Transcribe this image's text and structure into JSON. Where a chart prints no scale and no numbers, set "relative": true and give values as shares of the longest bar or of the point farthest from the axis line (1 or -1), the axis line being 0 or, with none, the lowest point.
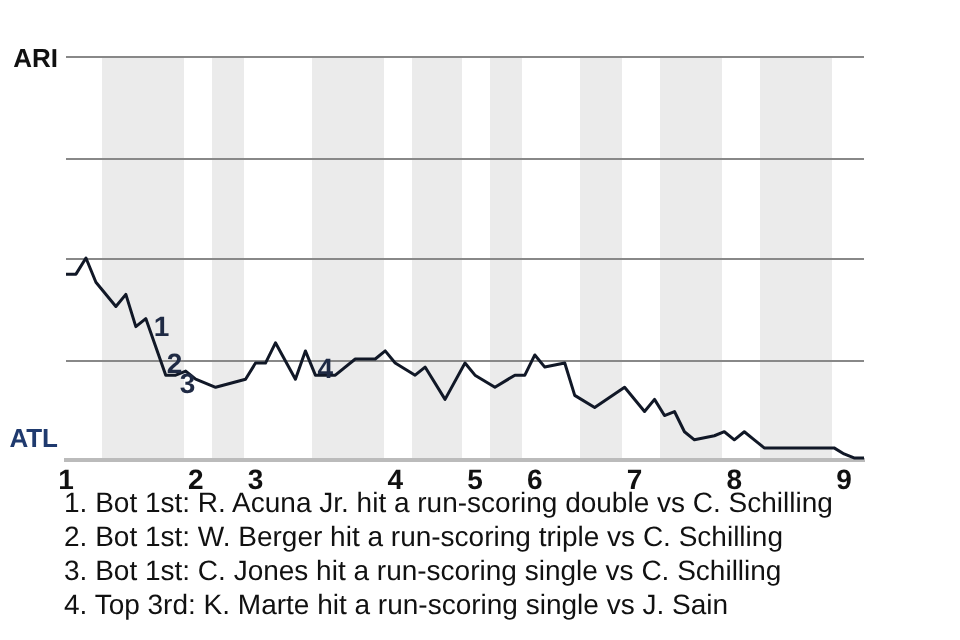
{
  "chart_data": {
    "type": "line",
    "relative": true,
    "categories": [
      "1",
      null,
      null,
      null,
      null,
      null,
      null,
      null,
      null,
      null,
      null,
      null,
      null,
      "2",
      null,
      null,
      null,
      null,
      null,
      "3",
      null,
      null,
      null,
      null,
      null,
      null,
      null,
      null,
      null,
      null,
      null,
      null,
      null,
      "4",
      null,
      null,
      null,
      null,
      null,
      null,
      null,
      "5",
      null,
      null,
      null,
      null,
      null,
      "6",
      null,
      null,
      null,
      null,
      null,
      null,
      null,
      null,
      null,
      "7",
      null,
      null,
      null,
      null,
      null,
      null,
      null,
      null,
      null,
      "8",
      null,
      null,
      null,
      null,
      null,
      null,
      null,
      null,
      null,
      null,
      "9",
      null,
      null
    ],
    "legend": false,
    "marker": "none",
    "line_style": "solid",
    "series": [
      {
        "color": "#111827",
        "values": [
          0.92,
          0.92,
          1,
          0.88,
          null,
          0.76,
          0.82,
          0.66,
          0.7,
          null,
          0.42,
          0.42,
          0.44,
          0.4,
          null,
          0.36,
          null,
          null,
          0.4,
          0.48,
          0.48,
          0.58,
          null,
          0.4,
          0.54,
          0.42,
          null,
          0.42,
          null,
          0.5,
          null,
          0.5,
          0.54,
          0.48,
          null,
          0.42,
          0.46,
          null,
          0.3,
          null,
          0.48,
          0.42,
          null,
          0.36,
          null,
          0.42,
          0.42,
          0.52,
          0.46,
          null,
          0.48,
          0.32,
          null,
          0.26,
          null,
          null,
          0.36,
          null,
          0.24,
          0.3,
          0.22,
          0.24,
          0.14,
          0.1,
          null,
          0.12,
          0.14,
          0.1,
          0.14,
          0.1,
          0.06,
          null,
          null,
          null,
          null,
          null,
          null,
          0.06,
          0.03,
          0.01,
          0.01
        ]
      }
    ],
    "ref_lines": [
      {
        "axis": "y",
        "value": 0.5,
        "color": "#888888"
      },
      {
        "axis": "y",
        "value": 1,
        "color": "#888888"
      },
      {
        "axis": "y",
        "value": 1.5,
        "color": "#888888"
      },
      {
        "axis": "y",
        "value": 2,
        "color": "#888888"
      }
    ],
    "annotations": [
      "ARI",
      "ATL",
      "1",
      "2",
      "3",
      "4",
      "1. Bot 1st: R. Acuna Jr. hit a run-scoring double vs C. Schilling",
      "2. Bot 1st: W. Berger hit a run-scoring triple vs C. Schilling",
      "3. Bot 1st: C. Jones hit a run-scoring single vs C. Schilling",
      "4. Top 3rd: K. Marte hit a run-scoring single vs J. Sain"
    ]
  }
}
